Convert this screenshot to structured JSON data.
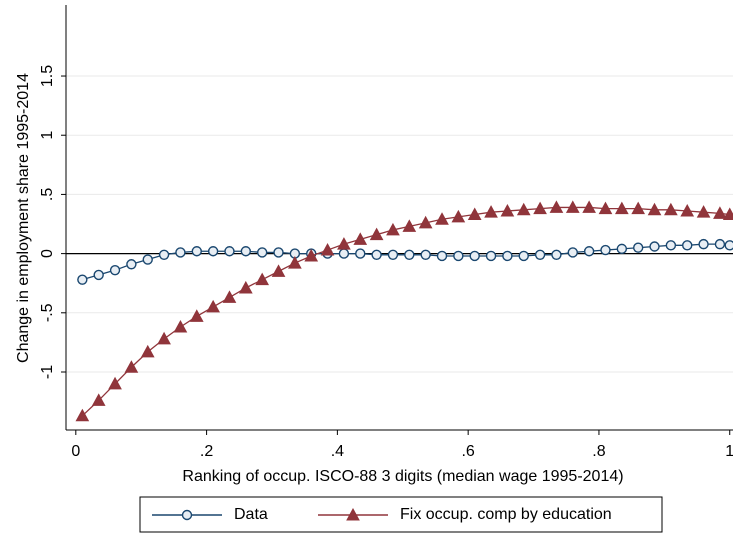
{
  "chart_data": {
    "type": "line",
    "x_label": "Ranking of occup. ISCO-88 3 digits (median wage 1995-2014)",
    "y_label": "Change in employment share 1995-2014",
    "xlim": [
      -0.015,
      1.005
    ],
    "ylim": [
      -1.49,
      2.1
    ],
    "xticks": [
      0,
      {
        "value": 0.2,
        "label": ".2"
      },
      {
        "value": 0.4,
        "label": ".4"
      },
      {
        "value": 0.6,
        "label": ".6"
      },
      {
        "value": 0.8,
        "label": ".8"
      },
      1
    ],
    "yticks": [
      -1,
      {
        "value": -0.5,
        "label": "-.5"
      },
      0,
      {
        "value": 0.5,
        "label": ".5"
      },
      1,
      1.5
    ],
    "grid": true,
    "x": [
      0.01,
      0.035,
      0.06,
      0.085,
      0.11,
      0.135,
      0.16,
      0.185,
      0.21,
      0.235,
      0.26,
      0.285,
      0.31,
      0.335,
      0.36,
      0.385,
      0.41,
      0.435,
      0.46,
      0.485,
      0.51,
      0.535,
      0.56,
      0.585,
      0.61,
      0.635,
      0.66,
      0.685,
      0.71,
      0.735,
      0.76,
      0.785,
      0.81,
      0.835,
      0.86,
      0.885,
      0.91,
      0.935,
      0.96,
      0.985,
      1.0
    ],
    "series": [
      {
        "name": "Data",
        "color": "#1a476f",
        "marker": "circle",
        "values": [
          -0.22,
          -0.18,
          -0.14,
          -0.09,
          -0.05,
          -0.01,
          0.01,
          0.02,
          0.02,
          0.02,
          0.02,
          0.01,
          0.01,
          0,
          0,
          0,
          0,
          0,
          -0.01,
          -0.01,
          -0.01,
          -0.01,
          -0.02,
          -0.02,
          -0.02,
          -0.02,
          -0.02,
          -0.02,
          -0.01,
          -0.01,
          0.01,
          0.02,
          0.03,
          0.04,
          0.05,
          0.06,
          0.07,
          0.07,
          0.08,
          0.08,
          0.07
        ]
      },
      {
        "name": "Fix occup. comp by education",
        "color": "#90353b",
        "marker": "triangle",
        "values": [
          -1.37,
          -1.24,
          -1.1,
          -0.96,
          -0.83,
          -0.72,
          -0.62,
          -0.53,
          -0.45,
          -0.37,
          -0.29,
          -0.22,
          -0.15,
          -0.08,
          -0.02,
          0.03,
          0.08,
          0.12,
          0.16,
          0.2,
          0.23,
          0.26,
          0.29,
          0.31,
          0.33,
          0.35,
          0.36,
          0.37,
          0.38,
          0.39,
          0.39,
          0.39,
          0.38,
          0.38,
          0.38,
          0.37,
          0.37,
          0.36,
          0.35,
          0.34,
          0.33
        ]
      }
    ]
  }
}
